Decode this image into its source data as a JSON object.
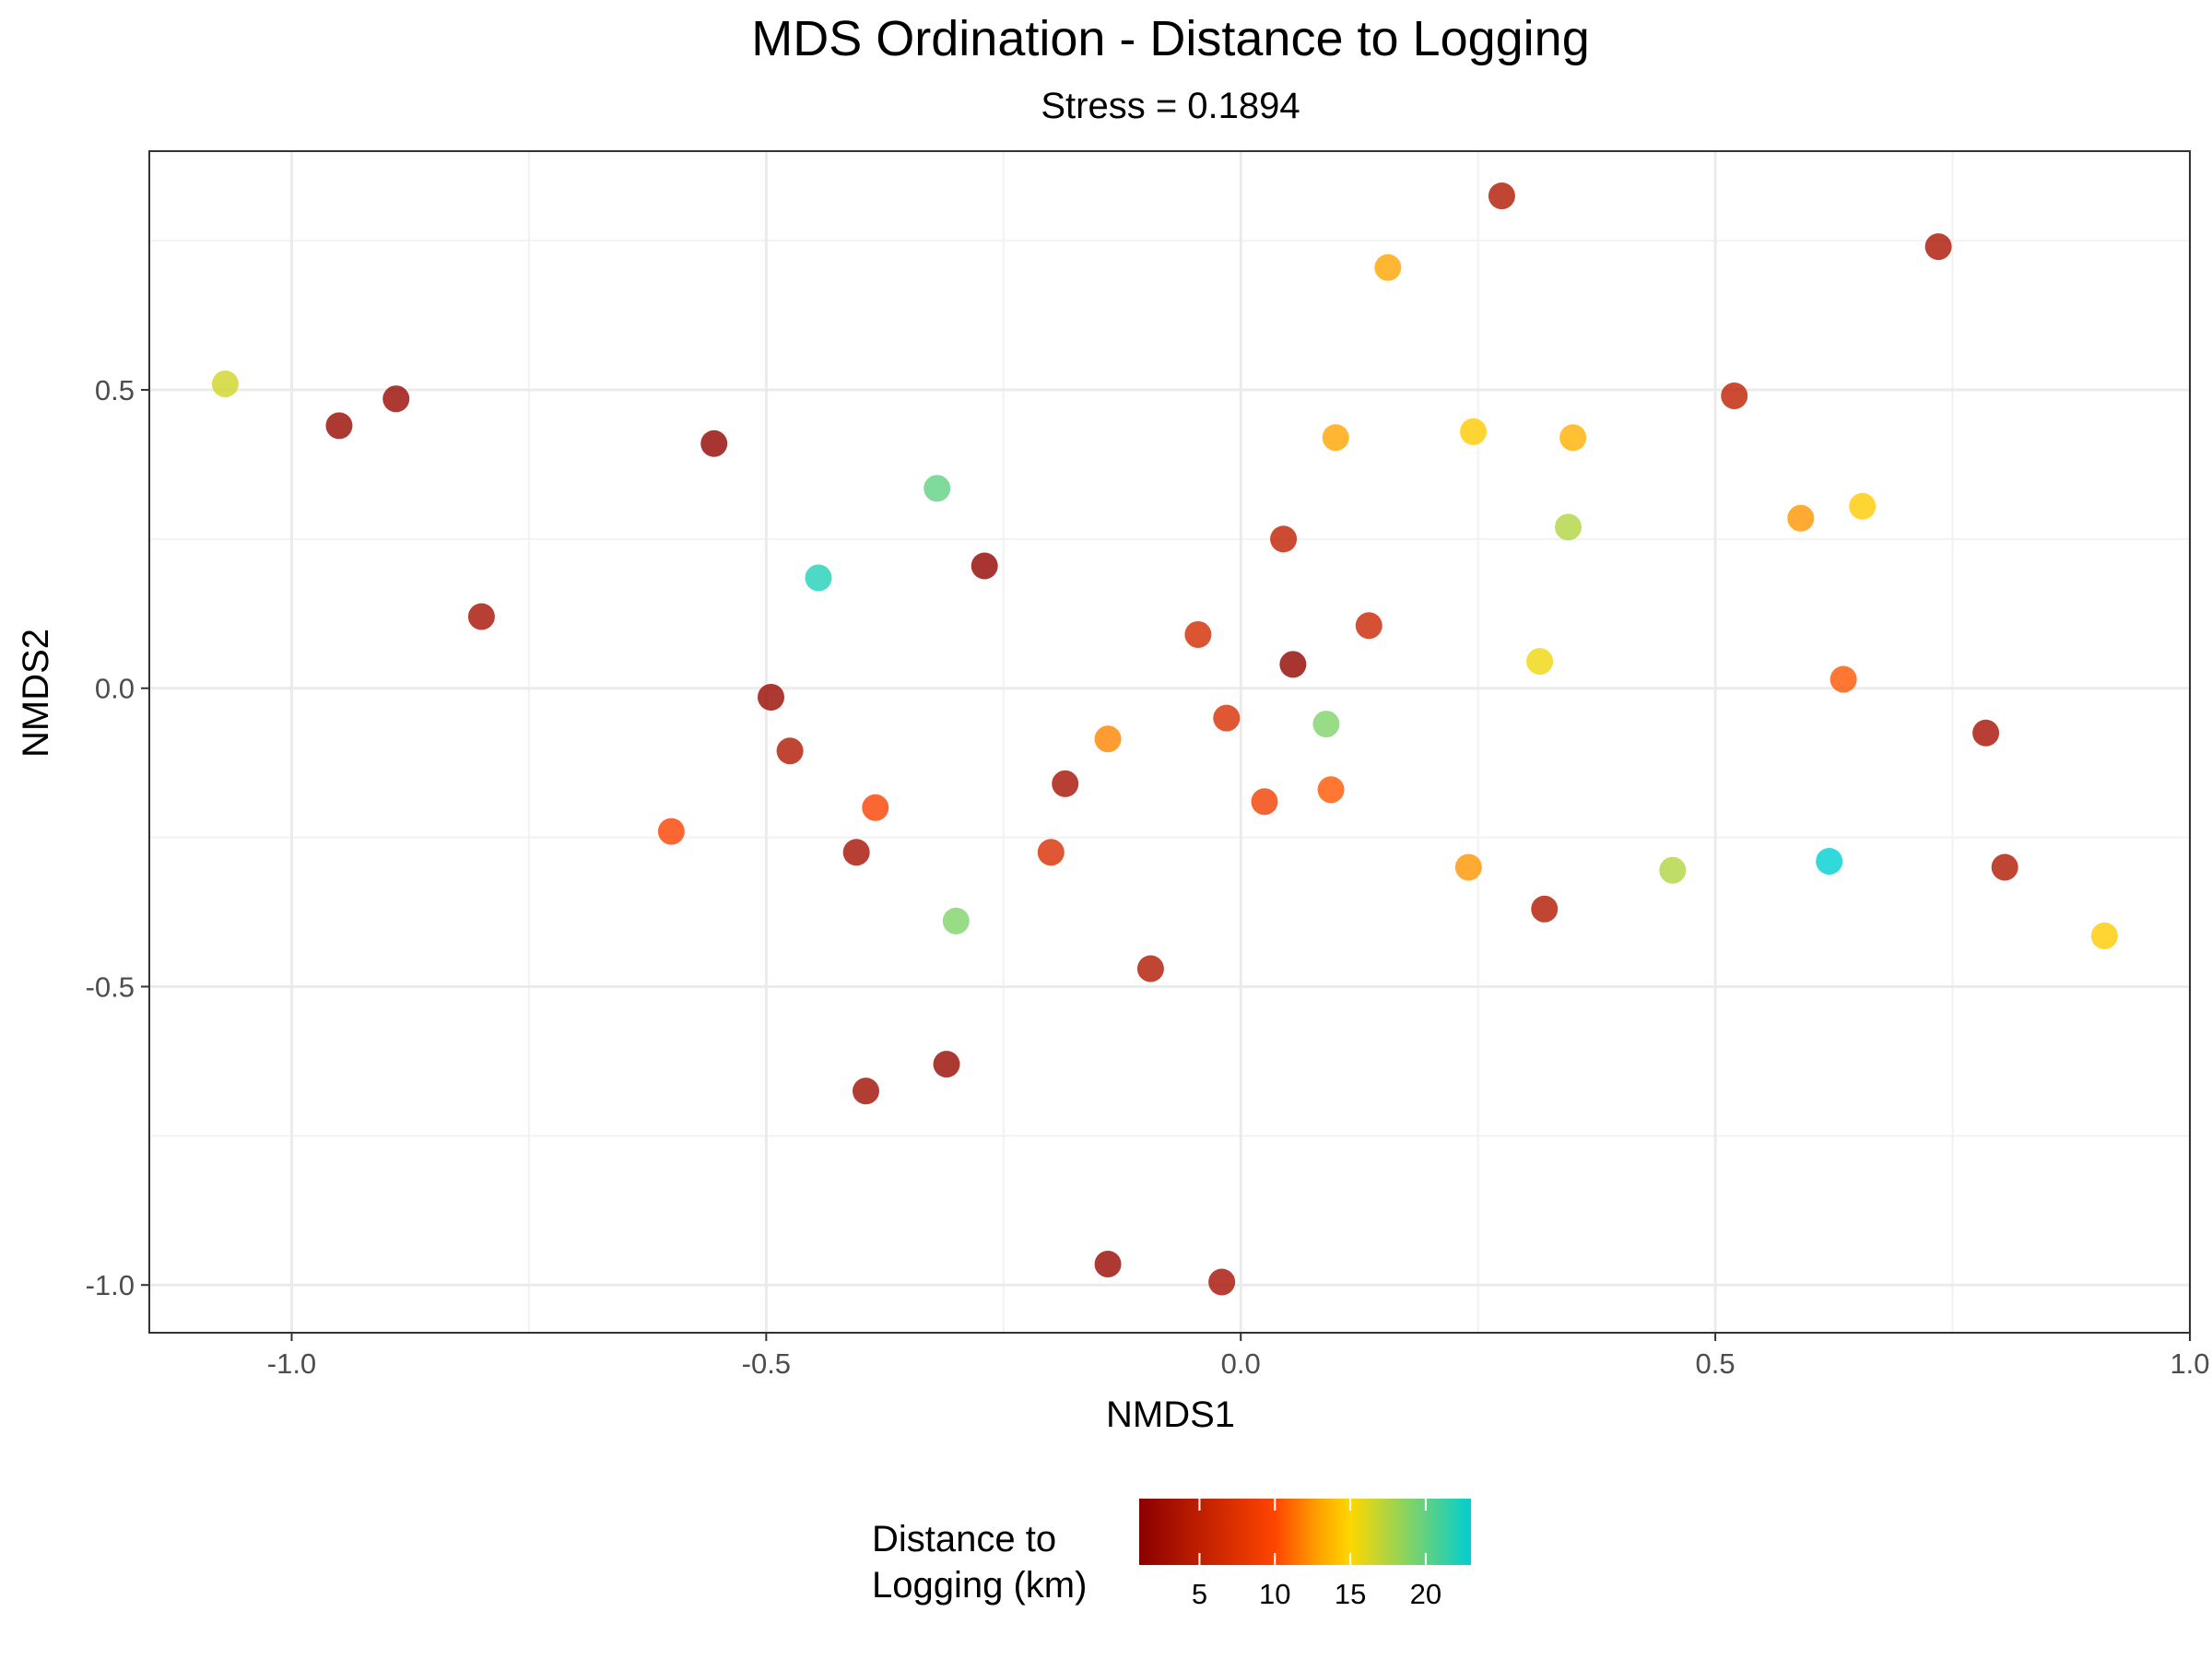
{
  "chart_data": {
    "type": "scatter",
    "title": "MDS Ordination - Distance to Logging",
    "subtitle": "Stress = 0.1894",
    "xlabel": "NMDS1",
    "ylabel": "NMDS2",
    "xlim": [
      -1.15,
      1.0
    ],
    "ylim": [
      -1.08,
      0.9
    ],
    "x_ticks": [
      -1.0,
      -0.5,
      0.0,
      0.5,
      1.0
    ],
    "x_tick_labels": [
      "-1.0",
      "-0.5",
      "0.0",
      "0.5",
      "1.0"
    ],
    "y_ticks": [
      -1.0,
      -0.5,
      0.0,
      0.5
    ],
    "y_tick_labels": [
      "-1.0",
      "-0.5",
      "0.0",
      "0.5"
    ],
    "grid": true,
    "legend": {
      "title_lines": [
        "Distance to",
        "Logging (km)"
      ],
      "position": "bottom",
      "range": [
        1,
        23
      ],
      "ticks": [
        5,
        10,
        15,
        20
      ],
      "tick_labels": [
        "5",
        "10",
        "15",
        "20"
      ],
      "colors": [
        "#8B0000",
        "#FF4500",
        "#FFA500",
        "#FFD700",
        "#00CED1"
      ],
      "color_stops": [
        1,
        10,
        13,
        15,
        23
      ]
    },
    "points": [
      {
        "x": -1.07,
        "y": 0.51,
        "distance": 16.5
      },
      {
        "x": -0.95,
        "y": 0.44,
        "distance": 2
      },
      {
        "x": -0.89,
        "y": 0.485,
        "distance": 2
      },
      {
        "x": -0.8,
        "y": 0.12,
        "distance": 3
      },
      {
        "x": -0.555,
        "y": 0.41,
        "distance": 1.5
      },
      {
        "x": -0.495,
        "y": -0.015,
        "distance": 2
      },
      {
        "x": -0.475,
        "y": -0.105,
        "distance": 4
      },
      {
        "x": -0.445,
        "y": 0.185,
        "distance": 22
      },
      {
        "x": -0.6,
        "y": -0.24,
        "distance": 9.5
      },
      {
        "x": -0.385,
        "y": -0.2,
        "distance": 9.5
      },
      {
        "x": -0.405,
        "y": -0.275,
        "distance": 3
      },
      {
        "x": -0.395,
        "y": -0.675,
        "distance": 2.5
      },
      {
        "x": -0.32,
        "y": 0.335,
        "distance": 20
      },
      {
        "x": -0.3,
        "y": -0.39,
        "distance": 19
      },
      {
        "x": -0.31,
        "y": -0.63,
        "distance": 2
      },
      {
        "x": -0.27,
        "y": 0.205,
        "distance": 1.5
      },
      {
        "x": -0.185,
        "y": -0.16,
        "distance": 3
      },
      {
        "x": -0.2,
        "y": -0.275,
        "distance": 7
      },
      {
        "x": -0.14,
        "y": -0.085,
        "distance": 12
      },
      {
        "x": -0.14,
        "y": -0.965,
        "distance": 2
      },
      {
        "x": -0.095,
        "y": -0.47,
        "distance": 4
      },
      {
        "x": -0.045,
        "y": 0.09,
        "distance": 6.5
      },
      {
        "x": -0.015,
        "y": -0.05,
        "distance": 7
      },
      {
        "x": -0.02,
        "y": -0.995,
        "distance": 3
      },
      {
        "x": 0.025,
        "y": -0.19,
        "distance": 9
      },
      {
        "x": 0.045,
        "y": 0.25,
        "distance": 5
      },
      {
        "x": 0.055,
        "y": 0.04,
        "distance": 1.5
      },
      {
        "x": 0.09,
        "y": -0.06,
        "distance": 19
      },
      {
        "x": 0.095,
        "y": -0.17,
        "distance": 10.5
      },
      {
        "x": 0.1,
        "y": 0.42,
        "distance": 13
      },
      {
        "x": 0.135,
        "y": 0.105,
        "distance": 6
      },
      {
        "x": 0.155,
        "y": 0.705,
        "distance": 13
      },
      {
        "x": 0.24,
        "y": -0.3,
        "distance": 12.5
      },
      {
        "x": 0.245,
        "y": 0.43,
        "distance": 14.5
      },
      {
        "x": 0.275,
        "y": 0.825,
        "distance": 4
      },
      {
        "x": 0.315,
        "y": 0.045,
        "distance": 15.5
      },
      {
        "x": 0.32,
        "y": -0.37,
        "distance": 4
      },
      {
        "x": 0.345,
        "y": 0.27,
        "distance": 17.5
      },
      {
        "x": 0.35,
        "y": 0.42,
        "distance": 13.5
      },
      {
        "x": 0.455,
        "y": -0.305,
        "distance": 17.5
      },
      {
        "x": 0.52,
        "y": 0.49,
        "distance": 5
      },
      {
        "x": 0.59,
        "y": 0.285,
        "distance": 12.5
      },
      {
        "x": 0.62,
        "y": -0.29,
        "distance": 23
      },
      {
        "x": 0.635,
        "y": 0.015,
        "distance": 10.5
      },
      {
        "x": 0.655,
        "y": 0.305,
        "distance": 14.5
      },
      {
        "x": 0.735,
        "y": 0.74,
        "distance": 3.5
      },
      {
        "x": 0.785,
        "y": -0.075,
        "distance": 3
      },
      {
        "x": 0.805,
        "y": -0.3,
        "distance": 4
      },
      {
        "x": 0.91,
        "y": -0.415,
        "distance": 14.5
      }
    ]
  }
}
